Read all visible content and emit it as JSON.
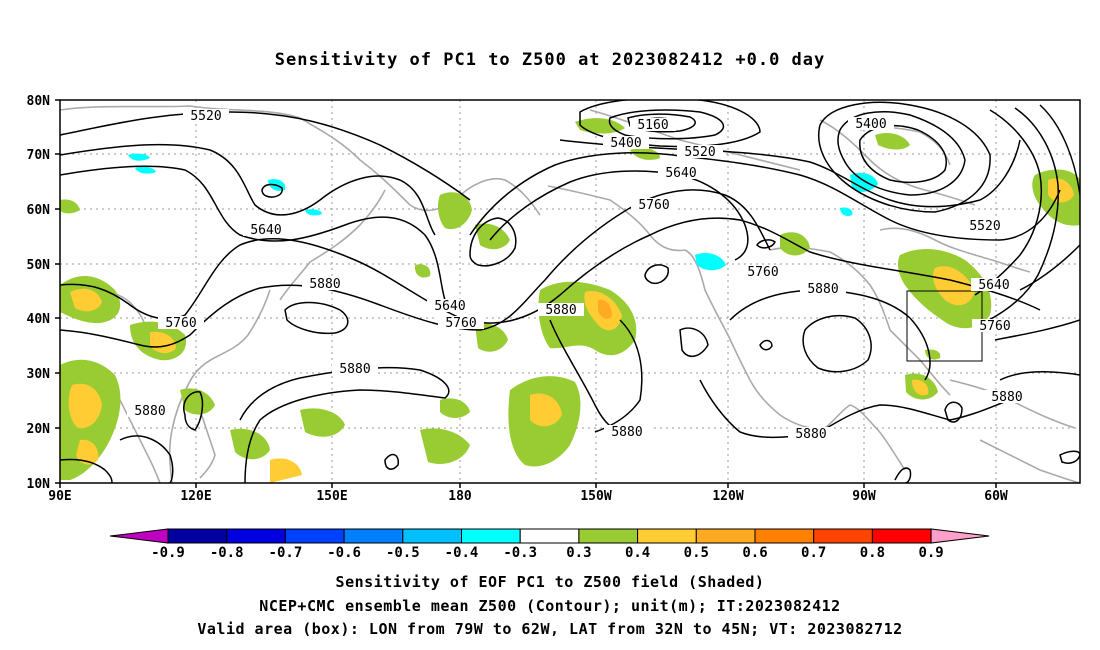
{
  "title": "Sensitivity of PC1 to Z500 at 2023082412 +0.0 day",
  "lat_labels": [
    "80N",
    "70N",
    "60N",
    "50N",
    "40N",
    "30N",
    "20N",
    "10N"
  ],
  "lon_labels": [
    "90E",
    "120E",
    "150E",
    "180",
    "150W",
    "120W",
    "90W",
    "60W"
  ],
  "contour_labels": [
    "5520",
    "5160",
    "5400",
    "5400",
    "5520",
    "5640",
    "5760",
    "5520",
    "5640",
    "5640",
    "5760",
    "5880",
    "5880",
    "5760",
    "5760",
    "5880",
    "5640",
    "5760",
    "5880",
    "5880",
    "5880",
    "5880",
    "5880"
  ],
  "colorbar": {
    "labels": [
      "-0.9",
      "-0.8",
      "-0.7",
      "-0.6",
      "-0.5",
      "-0.4",
      "-0.3",
      "0.3",
      "0.4",
      "0.5",
      "0.6",
      "0.7",
      "0.8",
      "0.9"
    ],
    "colors": [
      "#c000c0",
      "#0000a0",
      "#0000e0",
      "#0040ff",
      "#0080ff",
      "#00c0ff",
      "#00ffff",
      "#ffffff",
      "#99cc33",
      "#ffcc33",
      "#ffaa22",
      "#ff7f00",
      "#ff4400",
      "#ff0000",
      "#ffa0c8"
    ]
  },
  "captions": [
    "Sensitivity of EOF PC1 to Z500 field (Shaded)",
    "NCEP+CMC ensemble mean Z500 (Contour); unit(m); IT:2023082412",
    "Valid area (box): LON from 79W to 62W, LAT from 32N to 45N; VT: 2023082712"
  ],
  "valid_box": {
    "lon_min": -79,
    "lon_max": -62,
    "lat_min": 32,
    "lat_max": 45
  }
}
